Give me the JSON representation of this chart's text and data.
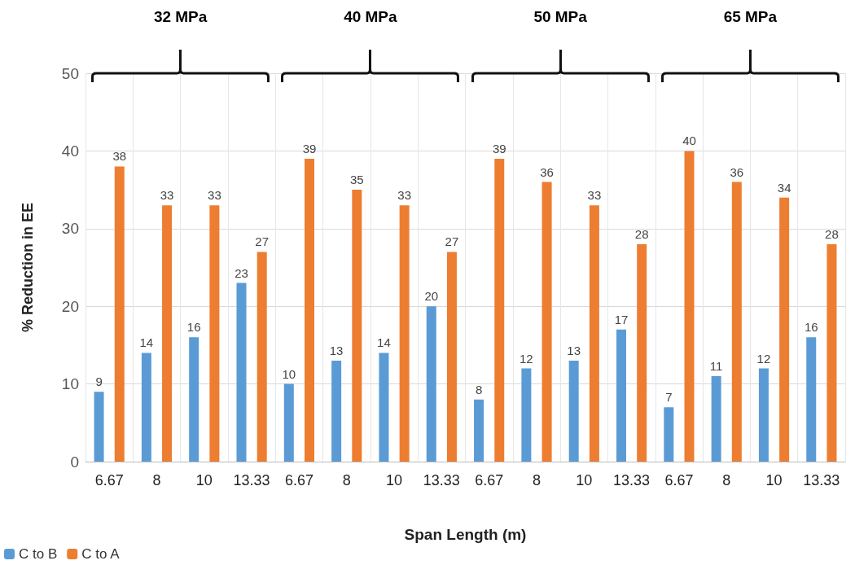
{
  "chart_data": {
    "type": "bar",
    "xlabel": "Span Length (m)",
    "ylabel": "% Reduction in EE",
    "categories": [
      "6.67",
      "8",
      "10",
      "13.33",
      "6.67",
      "8",
      "10",
      "13.33",
      "6.67",
      "8",
      "10",
      "13.33",
      "6.67",
      "8",
      "10",
      "13.33"
    ],
    "series": [
      {
        "name": "C to B",
        "color": "#5b9bd5",
        "values": [
          9,
          14,
          16,
          23,
          10,
          13,
          14,
          20,
          8,
          12,
          13,
          17,
          7,
          11,
          12,
          16
        ]
      },
      {
        "name": "C to A",
        "color": "#ed7d31",
        "values": [
          38,
          33,
          33,
          27,
          39,
          35,
          33,
          27,
          39,
          36,
          33,
          28,
          40,
          36,
          34,
          28
        ]
      }
    ],
    "ylim": [
      0,
      50
    ],
    "yticks": [
      0,
      10,
      20,
      30,
      40,
      50
    ],
    "grid": true,
    "legend": "bottom left",
    "data_labels": true,
    "annotations": [
      "32 MPa",
      "40 MPa",
      "50 MPa",
      "65 MPa"
    ]
  }
}
